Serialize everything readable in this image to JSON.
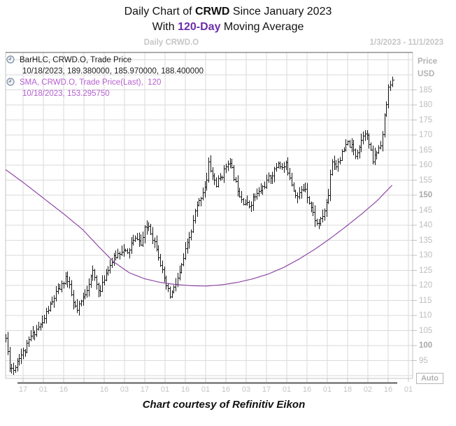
{
  "title": {
    "prefix": "Daily Chart of ",
    "symbol": "CRWD",
    "suffix": " Since January 2023",
    "line2_prefix": "With ",
    "line2_highlight": "120-Day",
    "line2_suffix": " Moving Average",
    "highlight_color": "#6b2fa8"
  },
  "chart_header": {
    "center": "Daily CRWD.O",
    "date_range": "1/3/2023 - 11/1/2023"
  },
  "legend": {
    "bar_series_name": "BarHLC, CRWD.O, Trade Price",
    "bar_series_values": "10/18/2023, 189.380000, 185.970000, 188.400000",
    "sma_series_name": "SMA, CRWD.O, Trade Price(Last),  120",
    "sma_series_values": "10/18/2023, 153.295750",
    "clock_icon": "clock-icon"
  },
  "y_axis": {
    "title_line1": "Price",
    "title_line2": "USD",
    "ticks": [
      185,
      180,
      175,
      170,
      165,
      160,
      155,
      150,
      145,
      140,
      135,
      130,
      125,
      120,
      115,
      110,
      105,
      100,
      95
    ],
    "bold_ticks": [
      150,
      100
    ],
    "auto_label": "Auto"
  },
  "x_axis": {
    "labels": [
      "17",
      "01",
      "16",
      "",
      "16",
      "03",
      "17",
      "01",
      "16",
      "01",
      "16",
      "03",
      "17",
      "01",
      "16",
      "01",
      "18",
      "02",
      "16",
      "01"
    ]
  },
  "footer": "Chart courtesy of Refinitiv Eikon",
  "chart_data": {
    "type": "bar",
    "subtype": "hlc-bars-with-sma-line",
    "symbol": "CRWD.O",
    "period": "daily",
    "date_range": "1/3/2023 - 11/1/2023",
    "ylabel": "Price USD",
    "ylim": [
      87,
      197
    ],
    "grid": true,
    "y_gridlines": [
      90,
      95,
      100,
      105,
      110,
      115,
      120,
      125,
      130,
      135,
      140,
      145,
      150,
      155,
      160,
      165,
      170,
      175,
      180,
      185,
      190,
      195
    ],
    "trading_days": 201,
    "last_bar": {
      "date": "10/18/2023",
      "high": 189.38,
      "low": 185.97,
      "close": 188.4
    },
    "sma_window": 120,
    "sma_last": {
      "date": "10/18/2023",
      "value": 153.29575
    },
    "close_anchors": [
      [
        0,
        102.5
      ],
      [
        2,
        93.5
      ],
      [
        4,
        92.0
      ],
      [
        7,
        96.5
      ],
      [
        10,
        98.5
      ],
      [
        13,
        103.0
      ],
      [
        16,
        105.5
      ],
      [
        19,
        107.5
      ],
      [
        21,
        111.0
      ],
      [
        24,
        114.5
      ],
      [
        26,
        117.5
      ],
      [
        29,
        120.0
      ],
      [
        31,
        123.0
      ],
      [
        33,
        119.5
      ],
      [
        35,
        114.0
      ],
      [
        37,
        111.5
      ],
      [
        39,
        114.5
      ],
      [
        41,
        117.5
      ],
      [
        43,
        121.0
      ],
      [
        45,
        124.5
      ],
      [
        47,
        120.5
      ],
      [
        49,
        118.0
      ],
      [
        51,
        122.5
      ],
      [
        53,
        126.0
      ],
      [
        56,
        129.0
      ],
      [
        60,
        132.0
      ],
      [
        63,
        130.5
      ],
      [
        65,
        134.0
      ],
      [
        68,
        136.0
      ],
      [
        70,
        133.5
      ],
      [
        72,
        138.5
      ],
      [
        74,
        140.0
      ],
      [
        76,
        136.0
      ],
      [
        78,
        133.0
      ],
      [
        80,
        127.5
      ],
      [
        82,
        121.5
      ],
      [
        85,
        116.5
      ],
      [
        87,
        119.0
      ],
      [
        90,
        124.0
      ],
      [
        93,
        131.5
      ],
      [
        96,
        138.0
      ],
      [
        98,
        144.5
      ],
      [
        100,
        148.0
      ],
      [
        102,
        151.5
      ],
      [
        104,
        155.0
      ],
      [
        105,
        160.5
      ],
      [
        107,
        156.5
      ],
      [
        109,
        153.5
      ],
      [
        111,
        156.0
      ],
      [
        113,
        158.0
      ],
      [
        115,
        161.5
      ],
      [
        117,
        158.5
      ],
      [
        119,
        154.0
      ],
      [
        121,
        150.5
      ],
      [
        123,
        148.0
      ],
      [
        126,
        146.5
      ],
      [
        128,
        149.0
      ],
      [
        131,
        151.0
      ],
      [
        134,
        153.5
      ],
      [
        136,
        155.5
      ],
      [
        139,
        158.0
      ],
      [
        141,
        161.0
      ],
      [
        143,
        159.0
      ],
      [
        145,
        160.0
      ],
      [
        147,
        156.5
      ],
      [
        149,
        152.0
      ],
      [
        151,
        149.5
      ],
      [
        153,
        151.5
      ],
      [
        155,
        152.5
      ],
      [
        157,
        148.0
      ],
      [
        159,
        144.0
      ],
      [
        161,
        140.5
      ],
      [
        163,
        141.5
      ],
      [
        165,
        145.0
      ],
      [
        167,
        150.0
      ],
      [
        168,
        157.5
      ],
      [
        169,
        161.5
      ],
      [
        171,
        160.0
      ],
      [
        173,
        162.5
      ],
      [
        175,
        165.0
      ],
      [
        177,
        167.5
      ],
      [
        179,
        166.0
      ],
      [
        181,
        163.5
      ],
      [
        183,
        166.5
      ],
      [
        185,
        170.5
      ],
      [
        186,
        171.5
      ],
      [
        188,
        167.0
      ],
      [
        190,
        161.5
      ],
      [
        192,
        164.5
      ],
      [
        194,
        167.5
      ],
      [
        195,
        170.0
      ],
      [
        196,
        176.0
      ],
      [
        197,
        180.5
      ],
      [
        198,
        185.5
      ],
      [
        199,
        187.5
      ],
      [
        200,
        188.4
      ]
    ],
    "sma_anchors": [
      [
        0,
        158.5
      ],
      [
        10,
        153.8
      ],
      [
        20,
        148.8
      ],
      [
        30,
        143.8
      ],
      [
        40,
        138.5
      ],
      [
        48,
        133.0
      ],
      [
        56,
        127.8
      ],
      [
        64,
        124.2
      ],
      [
        72,
        122.2
      ],
      [
        80,
        121.0
      ],
      [
        88,
        120.3
      ],
      [
        96,
        119.9
      ],
      [
        104,
        119.8
      ],
      [
        112,
        120.2
      ],
      [
        120,
        121.0
      ],
      [
        128,
        122.2
      ],
      [
        136,
        123.8
      ],
      [
        144,
        126.0
      ],
      [
        152,
        128.8
      ],
      [
        160,
        132.0
      ],
      [
        168,
        135.6
      ],
      [
        176,
        139.5
      ],
      [
        184,
        143.6
      ],
      [
        192,
        148.0
      ],
      [
        200,
        153.3
      ]
    ],
    "colors": {
      "bars": "#161616",
      "sma_line": "#8f4aa5",
      "grid": "#dadada",
      "plot_border": "#c4c4c4",
      "dark_border": "#5a5a5a",
      "axis_labels": "#c3c3c3"
    }
  }
}
